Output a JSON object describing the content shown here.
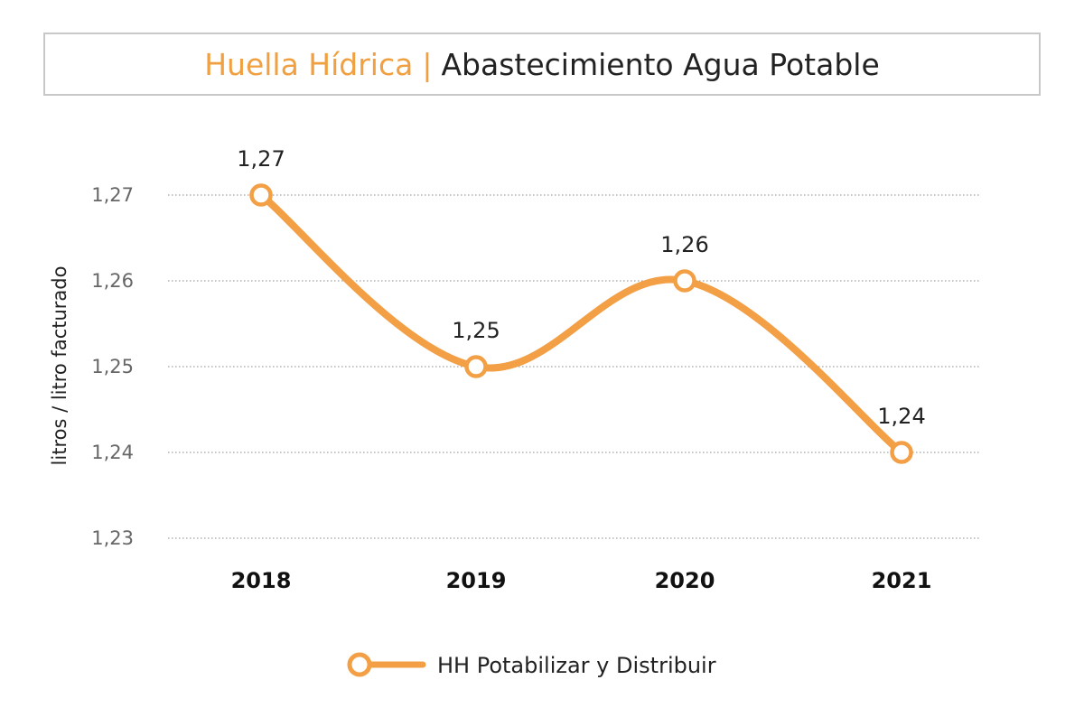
{
  "header": {
    "title_main": "Huella Hídrica",
    "separator": "|",
    "title_sub": "Abastecimiento Agua Potable"
  },
  "colors": {
    "accent": "#f29f45",
    "grid": "#a0a0a0",
    "text": "#222222"
  },
  "chart_data": {
    "type": "line",
    "title": "Huella Hídrica | Abastecimiento Agua Potable",
    "xlabel": "",
    "ylabel": "litros / litro facturado",
    "categories": [
      "2018",
      "2019",
      "2020",
      "2021"
    ],
    "series": [
      {
        "name": "HH Potabilizar y Distribuir",
        "values": [
          1.27,
          1.25,
          1.26,
          1.24
        ],
        "labels": [
          "1,27",
          "1,25",
          "1,26",
          "1,24"
        ]
      }
    ],
    "ylim": [
      1.23,
      1.27
    ],
    "yticks": [
      1.27,
      1.26,
      1.25,
      1.24,
      1.23
    ],
    "ytick_labels": [
      "1,27",
      "1,26",
      "1,25",
      "1,24",
      "1,23"
    ],
    "grid": "horizontal dotted",
    "legend": "bottom-center"
  }
}
